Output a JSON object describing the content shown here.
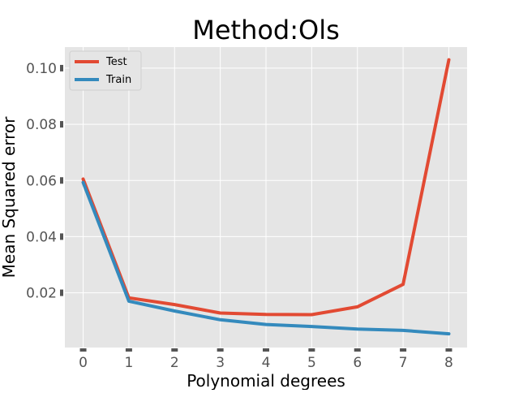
{
  "chart_data": {
    "type": "line",
    "title": "Method:Ols",
    "xlabel": "Polynomial degrees",
    "ylabel": "Mean Squared error",
    "x": [
      0,
      1,
      2,
      3,
      4,
      5,
      6,
      7,
      8
    ],
    "xlim": [
      -0.4,
      8.4
    ],
    "ylim": [
      0.0005,
      0.1075
    ],
    "xticks": [
      0,
      1,
      2,
      3,
      4,
      5,
      6,
      7,
      8
    ],
    "yticks": [
      0.02,
      0.04,
      0.06,
      0.08,
      0.1
    ],
    "ytick_labels": [
      "0.02",
      "0.04",
      "0.06",
      "0.08",
      "0.10"
    ],
    "grid": true,
    "legend_position": "top-left",
    "series": [
      {
        "name": "Test",
        "color": "#e24a33",
        "values": [
          0.0605,
          0.0182,
          0.0158,
          0.0128,
          0.0123,
          0.0122,
          0.015,
          0.023,
          0.103
        ]
      },
      {
        "name": "Train",
        "color": "#348abd",
        "values": [
          0.0593,
          0.017,
          0.0135,
          0.0104,
          0.0087,
          0.008,
          0.0071,
          0.0066,
          0.0054
        ]
      }
    ]
  }
}
